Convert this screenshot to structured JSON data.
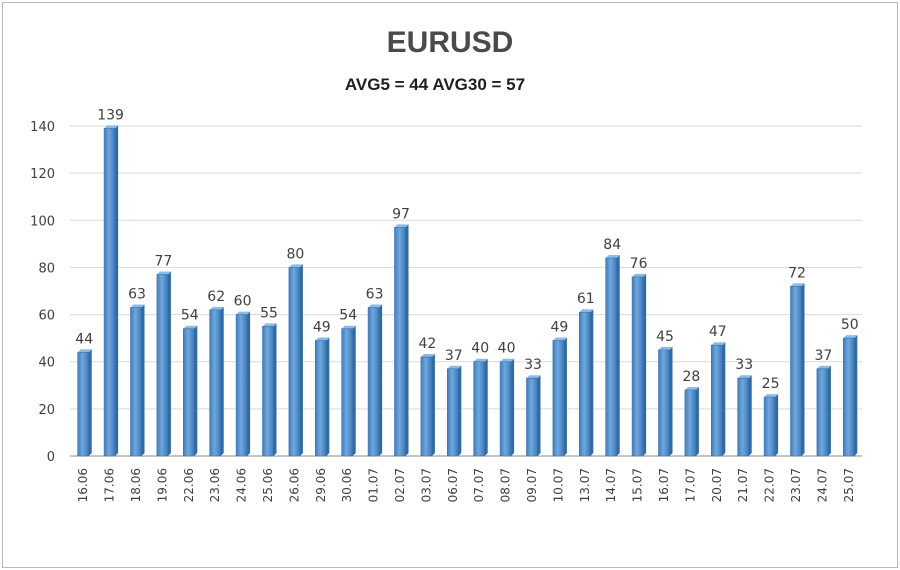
{
  "chart_data": {
    "type": "bar",
    "title": "EURUSD",
    "subtitle": "AVG5 = 44 AVG30 = 57",
    "xlabel": "",
    "ylabel": "",
    "ylim": [
      0,
      140
    ],
    "yticks": [
      0,
      20,
      40,
      60,
      80,
      100,
      120,
      140
    ],
    "grid": true,
    "legend": "none",
    "bar_color": "#5b9bd5",
    "categories": [
      "16.06",
      "17.06",
      "18.06",
      "19.06",
      "22.06",
      "23.06",
      "24.06",
      "25.06",
      "26.06",
      "29.06",
      "30.06",
      "01.07",
      "02.07",
      "03.07",
      "06.07",
      "07.07",
      "08.07",
      "09.07",
      "10.07",
      "13.07",
      "14.07",
      "15.07",
      "16.07",
      "17.07",
      "20.07",
      "21.07",
      "22.07",
      "23.07",
      "24.07",
      "25.07"
    ],
    "values": [
      44,
      139,
      63,
      77,
      54,
      62,
      60,
      55,
      80,
      49,
      54,
      63,
      97,
      42,
      37,
      40,
      40,
      33,
      49,
      61,
      84,
      76,
      45,
      28,
      47,
      33,
      25,
      72,
      37,
      50
    ]
  }
}
